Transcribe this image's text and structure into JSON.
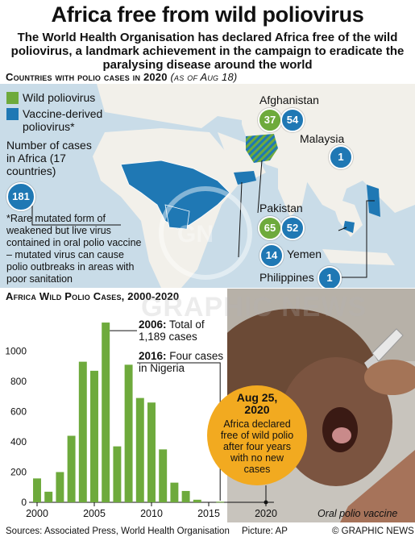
{
  "title": "Africa free from wild poliovirus",
  "subtitle": "The World Health Organisation has declared Africa free of the wild poliovirus, a landmark achievement in the campaign to eradicate the paralysing disease around the world",
  "map_section": {
    "heading": "Countries with polio cases in 2020",
    "heading_note": "(as of Aug 18)",
    "legend": [
      {
        "label": "Wild poliovirus",
        "color": "#6eaa3c"
      },
      {
        "label": "Vaccine-derived poliovirus*",
        "color": "#1f78b4"
      }
    ],
    "africa_label": "Number of cases in Africa (17 countries)",
    "africa_value": "181",
    "footnote": "*Rare mutated form of weakened but live virus contained in oral polio vaccine – mutated virus can cause polio outbreaks in areas with poor sanitation",
    "countries": [
      {
        "name": "Afghanistan",
        "wild": "37",
        "vaccine": "54"
      },
      {
        "name": "Malaysia",
        "wild": "",
        "vaccine": "1"
      },
      {
        "name": "Pakistan",
        "wild": "65",
        "vaccine": "52"
      },
      {
        "name": "Yemen",
        "wild": "",
        "vaccine": "14"
      },
      {
        "name": "Philippines",
        "wild": "",
        "vaccine": "1"
      }
    ],
    "watermark": "GRAPHIC NEWS"
  },
  "chart_data": {
    "type": "bar",
    "title": "Africa Wild Polio Cases, 2000-2020",
    "x": [
      2000,
      2001,
      2002,
      2003,
      2004,
      2005,
      2006,
      2007,
      2008,
      2009,
      2010,
      2011,
      2012,
      2013,
      2014,
      2015,
      2016,
      2017,
      2018,
      2019,
      2020
    ],
    "values": [
      158,
      70,
      200,
      440,
      930,
      870,
      1189,
      370,
      910,
      690,
      660,
      350,
      130,
      75,
      17,
      0,
      4,
      0,
      0,
      0,
      0
    ],
    "ylim": [
      0,
      1200
    ],
    "yticks": [
      0,
      200,
      400,
      600,
      800,
      1000
    ],
    "xticks": [
      2000,
      2005,
      2010,
      2015,
      2020
    ],
    "bar_color": "#6eaa3c",
    "grid": false,
    "annotations": [
      {
        "year": 2006,
        "bold": "2006:",
        "text": "Total of 1,189 cases"
      },
      {
        "year": 2016,
        "bold": "2016:",
        "text": "Four cases in Nigeria"
      }
    ]
  },
  "aug_callout": {
    "date": "Aug 25, 2020",
    "text": "Africa declared free of wild polio after four years with no new cases",
    "color": "#f2aa20"
  },
  "photo_caption": "Oral polio vaccine",
  "footer": {
    "sources": "Sources: Associated Press, World Health Organisation",
    "picture": "Picture: AP",
    "copyright": "© GRAPHIC NEWS"
  }
}
